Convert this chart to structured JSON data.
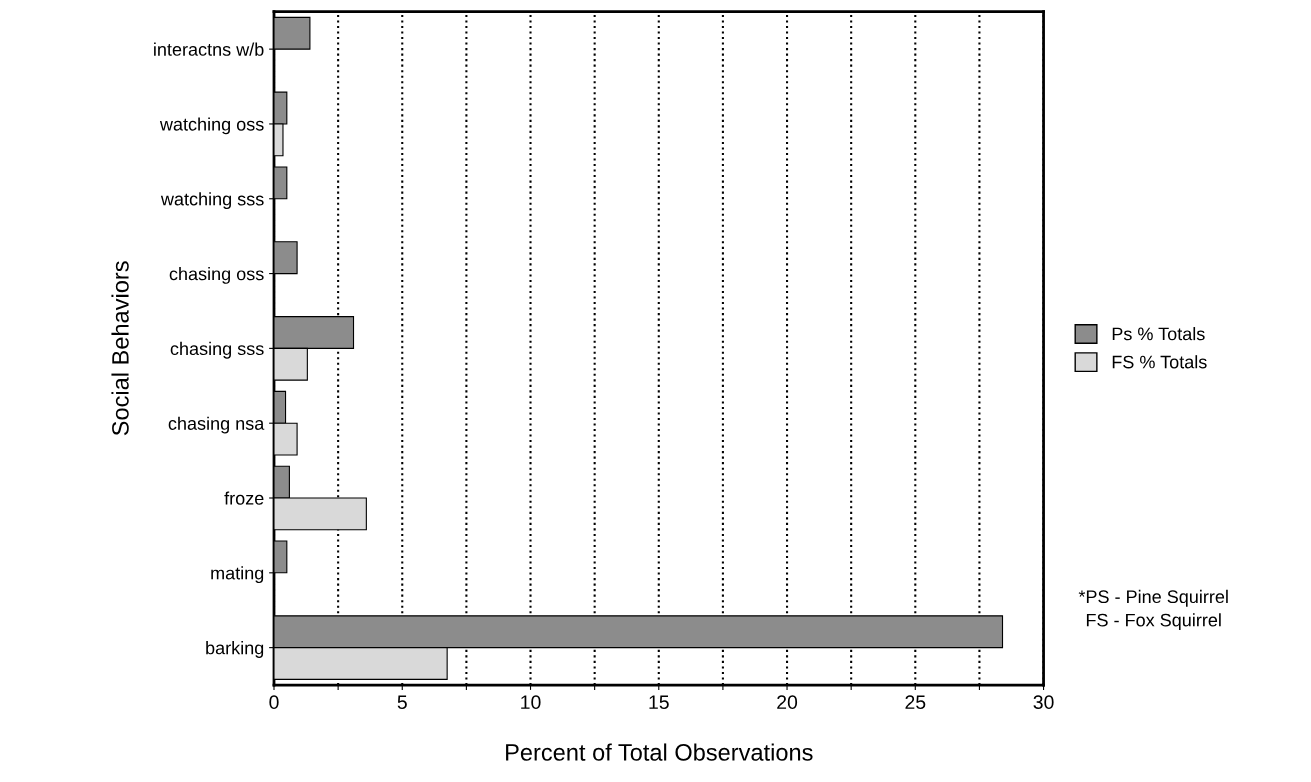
{
  "chart_data": {
    "type": "bar",
    "orientation": "horizontal",
    "xlabel": "Percent of Total Observations",
    "ylabel": "Social Behaviors",
    "categories": [
      "interactns w/b",
      "watching oss",
      "watching sss",
      "chasing oss",
      "chasing sss",
      "chasing nsa",
      "froze",
      "mating",
      "barking"
    ],
    "series": [
      {
        "name": "Ps % Totals",
        "color": "#8c8c8c",
        "values": [
          1.4,
          0.5,
          0.5,
          0.9,
          3.1,
          0.45,
          0.6,
          0.5,
          28.4
        ]
      },
      {
        "name": "FS % Totals",
        "color": "#d9d9d9",
        "values": [
          null,
          0.35,
          null,
          null,
          1.3,
          0.9,
          3.6,
          null,
          6.75
        ]
      }
    ],
    "xlim": [
      0,
      30
    ],
    "xticks": [
      0,
      {
        "value": 2.5,
        "label": null
      },
      5,
      {
        "value": 7.5,
        "label": null
      },
      10,
      {
        "value": 12.5,
        "label": null
      },
      15,
      {
        "value": 17.5,
        "label": null
      },
      20,
      {
        "value": 22.5,
        "label": null
      },
      25,
      {
        "value": 27.5,
        "label": null
      },
      30
    ],
    "grid": "x",
    "legend": "right",
    "annotations": [
      "*PS - Pine Squirrel\nFS - Fox Squirrel"
    ]
  }
}
